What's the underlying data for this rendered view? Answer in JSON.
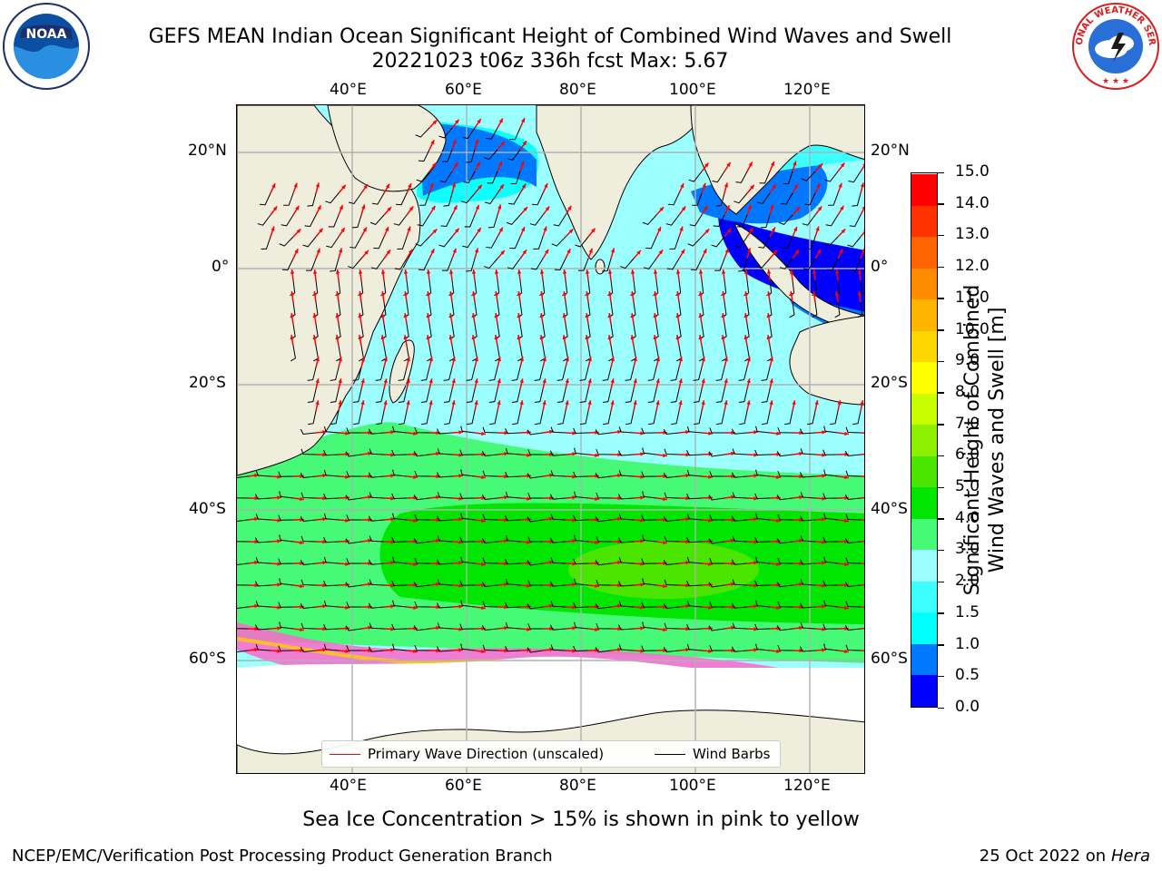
{
  "title": {
    "line1": "GEFS MEAN Indian Ocean Significant Height of Combined Wind Waves and Swell",
    "line2": "20221023 t06z 336h fcst   Max: 5.67"
  },
  "logos": {
    "noaa": "NOAA",
    "noaa_ring": "NATIONAL OCEANIC AND ATMOSPHERIC ADMINISTRATION · U.S. DEPARTMENT OF COMMERCE",
    "nws_ring": "NATIONAL WEATHER SERVICE"
  },
  "map": {
    "lon_range": [
      20,
      130
    ],
    "lat_range": [
      -72,
      28
    ],
    "lon_ticks": [
      "40°E",
      "60°E",
      "80°E",
      "100°E",
      "120°E"
    ],
    "lat_ticks": [
      "20°N",
      "0°",
      "20°S",
      "40°S",
      "60°S"
    ],
    "grid": true,
    "colors": {
      "land": "#efeddc",
      "ice_free_open": "#ffffff",
      "wave_arrow": "#ff0000",
      "wind_barb": "#000000"
    }
  },
  "legend": {
    "items": [
      {
        "label": "Primary Wave Direction (unscaled)",
        "color": "#ff0000"
      },
      {
        "label": "Wind Barbs",
        "color": "#000000"
      }
    ],
    "placement": "bottom-center"
  },
  "colorbar": {
    "label_line1": "Significant Height of Combined",
    "label_line2": "Wind Waves and Swell [m]",
    "ticks": [
      "0.0",
      "0.5",
      "1.0",
      "1.5",
      "2.0",
      "3.0",
      "4.0",
      "5.0",
      "6.0",
      "7.0",
      "8.0",
      "9.0",
      "10.0",
      "11.0",
      "12.0",
      "13.0",
      "14.0",
      "15.0"
    ],
    "colors": [
      "#0000ff",
      "#0078ff",
      "#00ffff",
      "#3cffff",
      "#9cffff",
      "#46fa78",
      "#00e600",
      "#4be600",
      "#8cf000",
      "#c8ff00",
      "#ffff00",
      "#ffd700",
      "#ffb400",
      "#ff8c00",
      "#ff6400",
      "#ff3200",
      "#ff0000"
    ]
  },
  "chart_data": {
    "type": "heatmap",
    "title": "GEFS MEAN Indian Ocean Significant Height of Combined Wind Waves and Swell",
    "subtitle": "20221023 t06z 336h fcst   Max: 5.67",
    "max_value": 5.67,
    "units": "m",
    "scale_range": [
      0,
      15
    ],
    "bands_approx": [
      {
        "region": "Southern Ocean 35°S–55°S",
        "range_m": [
          3,
          5
        ]
      },
      {
        "region": "Southern Ocean core ~48°S, 85°E–110°E",
        "range_m": [
          5,
          5.67
        ]
      },
      {
        "region": "Central/South Indian Ocean 0°–30°S",
        "range_m": [
          2,
          3
        ]
      },
      {
        "region": "Arabian Sea / Bay of Bengal",
        "range_m": [
          1.5,
          2
        ]
      },
      {
        "region": "Coastal / Indonesian seas",
        "range_m": [
          0,
          1
        ]
      }
    ]
  },
  "caption": "Sea Ice Concentration > 15% is shown in pink to yellow",
  "footer": {
    "left": "NCEP/EMC/Verification Post Processing Product Generation Branch",
    "right_date": "25 Oct 2022 on ",
    "right_host": "Hera"
  }
}
